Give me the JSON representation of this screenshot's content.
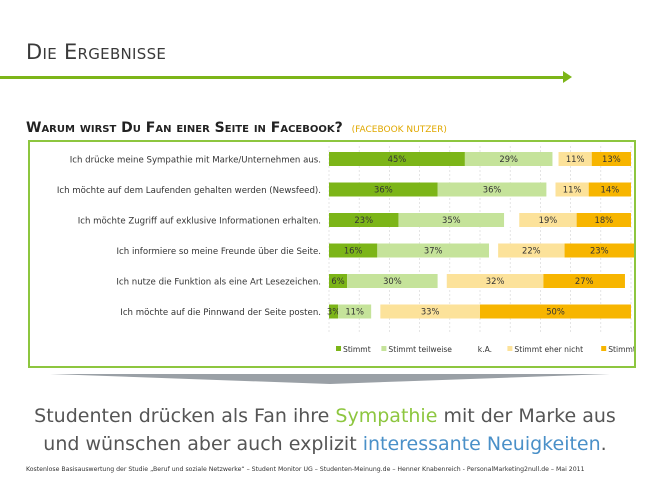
{
  "slide": {
    "title": "Die Ergebnisse",
    "question": "Warum wirst Du Fan einer Seite in Facebook?",
    "question_sub": "(Facebook Nutzer)",
    "conclusion_line1_pre": "Studenten drücken als Fan ihre ",
    "conclusion_line1_hl": "Sympathie",
    "conclusion_line1_post": " mit der Marke aus",
    "conclusion_line2_pre": "und wünschen aber auch explizit ",
    "conclusion_line2_hl": "interessante Neuigkeiten",
    "conclusion_line2_post": ".",
    "footer": "Kostenlose Basisauswertung der Studie „Beruf und soziale Netzwerke“ – Student Monitor UG – Studenten-Meinung.de – Henner Knabenreich - PersonalMarketing2null.de – Mai 2011",
    "colors": {
      "accent": "#7cb518",
      "highlight_blue": "#4a90c8"
    }
  },
  "chart_data": {
    "type": "bar",
    "orientation": "horizontal",
    "stacked": true,
    "categories": [
      "Ich drücke meine Sympathie mit Marke/Unternehmen aus.",
      "Ich möchte auf dem Laufenden gehalten werden (Newsfeed).",
      "Ich möchte Zugriff auf exklusive Informationen erhalten.",
      "Ich informiere so meine Freunde über die Seite.",
      "Ich nutze die Funktion als eine Art Lesezeichen.",
      "Ich möchte auf die Pinnwand der Seite posten."
    ],
    "series": [
      {
        "name": "Stimmt",
        "color": "#7cb518",
        "values": [
          45,
          36,
          23,
          16,
          6,
          3
        ]
      },
      {
        "name": "Stimmt teilweise",
        "color": "#c5e39a",
        "values": [
          29,
          36,
          35,
          37,
          30,
          11
        ]
      },
      {
        "name": "k.A.",
        "color": "#ffffff",
        "values": [
          2,
          3,
          5,
          3,
          3,
          3
        ]
      },
      {
        "name": "Stimmt eher nicht",
        "color": "#fce29a",
        "values": [
          11,
          11,
          19,
          22,
          32,
          33
        ]
      },
      {
        "name": "Stimmt nicht",
        "color": "#f7b500",
        "values": [
          13,
          14,
          18,
          23,
          27,
          50
        ]
      }
    ],
    "data_labels": [
      [
        "45%",
        "29%",
        "",
        "11%",
        "13%"
      ],
      [
        "36%",
        "36%",
        "",
        "11%",
        "14%"
      ],
      [
        "23%",
        "35%",
        "",
        "19%",
        "18%"
      ],
      [
        "16%",
        "37%",
        "",
        "22%",
        "23%"
      ],
      [
        "6%",
        "30%",
        "",
        "32%",
        "27%"
      ],
      [
        "3%",
        "11%",
        "",
        "33%",
        "50%"
      ]
    ],
    "xlim": [
      0,
      100
    ],
    "grid": true,
    "legend_position": "bottom"
  }
}
